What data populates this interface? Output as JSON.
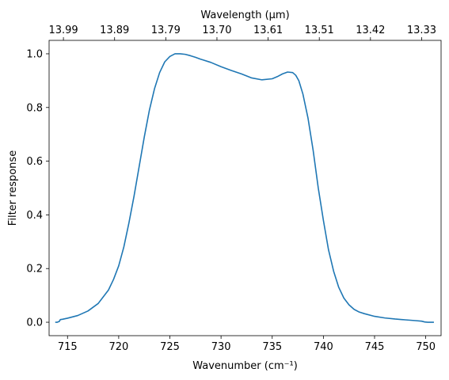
{
  "chart_data": {
    "type": "line",
    "title": "",
    "xlabel": "Wavenumber (cm⁻¹)",
    "ylabel": "Filter response",
    "top_xlabel": "Wavelength (μm)",
    "xlim": [
      713.2,
      751.5
    ],
    "ylim": [
      -0.05,
      1.05
    ],
    "x_ticks": [
      715,
      720,
      725,
      730,
      735,
      740,
      745,
      750
    ],
    "y_ticks": [
      0.0,
      0.2,
      0.4,
      0.6,
      0.8,
      1.0
    ],
    "y_tick_labels": [
      "0.0",
      "0.2",
      "0.4",
      "0.6",
      "0.8",
      "1.0"
    ],
    "top_ticks": [
      {
        "pos": 714.6,
        "label": "13.99"
      },
      {
        "pos": 719.6,
        "label": "13.89"
      },
      {
        "pos": 724.6,
        "label": "13.79"
      },
      {
        "pos": 729.6,
        "label": "13.70"
      },
      {
        "pos": 734.6,
        "label": "13.61"
      },
      {
        "pos": 739.6,
        "label": "13.51"
      },
      {
        "pos": 744.6,
        "label": "13.42"
      },
      {
        "pos": 749.6,
        "label": "13.33"
      }
    ],
    "grid": false,
    "series": [
      {
        "color": "#1f77b4",
        "x": [
          713.8,
          714.0,
          714.2,
          714.3,
          714.5,
          715.0,
          716.0,
          717.0,
          718.0,
          719.0,
          719.5,
          720.0,
          720.5,
          721.0,
          721.5,
          722.0,
          722.5,
          723.0,
          723.5,
          724.0,
          724.5,
          725.0,
          725.5,
          726.0,
          726.5,
          727.0,
          727.5,
          728.0,
          729.0,
          730.0,
          731.0,
          732.0,
          733.0,
          734.0,
          735.0,
          735.5,
          736.0,
          736.5,
          737.0,
          737.3,
          737.6,
          738.0,
          738.5,
          739.0,
          739.5,
          740.0,
          740.5,
          741.0,
          741.5,
          742.0,
          742.5,
          743.0,
          743.5,
          744.0,
          745.0,
          746.0,
          747.0,
          748.0,
          749.0,
          749.6,
          749.9,
          750.2,
          750.8
        ],
        "y": [
          0.0,
          0.0,
          0.003,
          0.01,
          0.011,
          0.015,
          0.025,
          0.042,
          0.07,
          0.12,
          0.16,
          0.21,
          0.28,
          0.37,
          0.47,
          0.58,
          0.69,
          0.79,
          0.87,
          0.93,
          0.97,
          0.99,
          1.0,
          1.0,
          0.998,
          0.993,
          0.987,
          0.98,
          0.968,
          0.952,
          0.938,
          0.925,
          0.91,
          0.903,
          0.907,
          0.915,
          0.925,
          0.932,
          0.93,
          0.92,
          0.9,
          0.85,
          0.76,
          0.64,
          0.5,
          0.38,
          0.27,
          0.19,
          0.13,
          0.09,
          0.065,
          0.048,
          0.038,
          0.032,
          0.022,
          0.016,
          0.012,
          0.009,
          0.006,
          0.004,
          0.001,
          0.0,
          0.0
        ]
      }
    ]
  }
}
